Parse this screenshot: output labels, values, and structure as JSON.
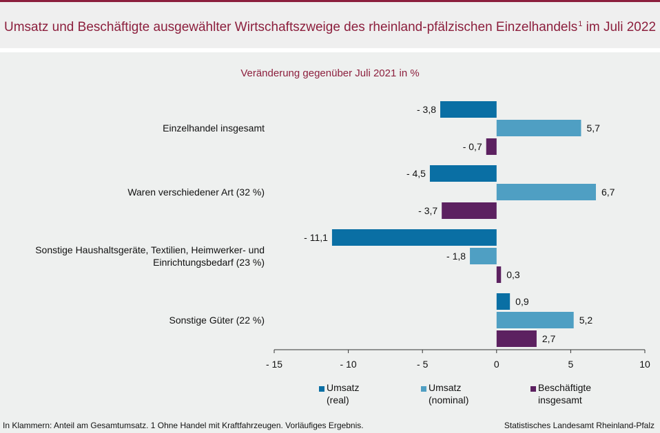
{
  "header": {
    "title": "Umsatz und Beschäftigte ausgewählter Wirtschaftszweige des rheinland-pfälzischen Einzelhandels",
    "title_sup": "1",
    "title_suffix": " im Juli 2022"
  },
  "colors": {
    "accent": "#8c1f3d",
    "umsatz_real": "#0a6fa4",
    "umsatz_nominal": "#4f9fc3",
    "beschaeftigte": "#5c2160"
  },
  "chart_data": {
    "type": "bar",
    "orientation": "horizontal",
    "subtitle": "Veränderung gegenüber Juli 2021 in %",
    "categories": [
      [
        "Einzelhandel insgesamt"
      ],
      [
        "Waren verschiedener Art (32 %)"
      ],
      [
        "Sonstige Haushaltsgeräte, Textilien, Heimwerker- und",
        "Einrichtungsbedarf (23 %)"
      ],
      [
        "Sonstige Güter (22 %)"
      ]
    ],
    "series": [
      {
        "name": "Umsatz (real)",
        "legend_lines": [
          "Umsatz",
          "(real)"
        ],
        "color": "#0a6fa4",
        "values": [
          -3.8,
          -4.5,
          -11.1,
          0.9
        ],
        "labels": [
          "- 3,8",
          "- 4,5",
          "- 11,1",
          "0,9"
        ]
      },
      {
        "name": "Umsatz (nominal)",
        "legend_lines": [
          "Umsatz",
          "(nominal)"
        ],
        "color": "#4f9fc3",
        "values": [
          5.7,
          6.7,
          -1.8,
          5.2
        ],
        "labels": [
          "5,7",
          "6,7",
          "- 1,8",
          "5,2"
        ]
      },
      {
        "name": "Beschäftigte insgesamt",
        "legend_lines": [
          "Beschäftigte",
          "insgesamt"
        ],
        "color": "#5c2160",
        "values": [
          -0.7,
          -3.7,
          0.3,
          2.7
        ],
        "labels": [
          "- 0,7",
          "- 3,7",
          "0,3",
          "2,7"
        ]
      }
    ],
    "xlim": [
      -15,
      10
    ],
    "xticks": [
      -15,
      -10,
      -5,
      0,
      5,
      10
    ],
    "xtick_labels": [
      "- 15",
      "- 10",
      "- 5",
      "0",
      "5",
      "10"
    ],
    "legend_position": "bottom"
  },
  "footer": {
    "footnote": "In Klammern: Anteil am Gesamtumsatz. 1 Ohne Handel mit Kraftfahrzeugen. Vorläufiges Ergebnis.",
    "source": "Statistisches Landesamt Rheinland-Pfalz"
  }
}
